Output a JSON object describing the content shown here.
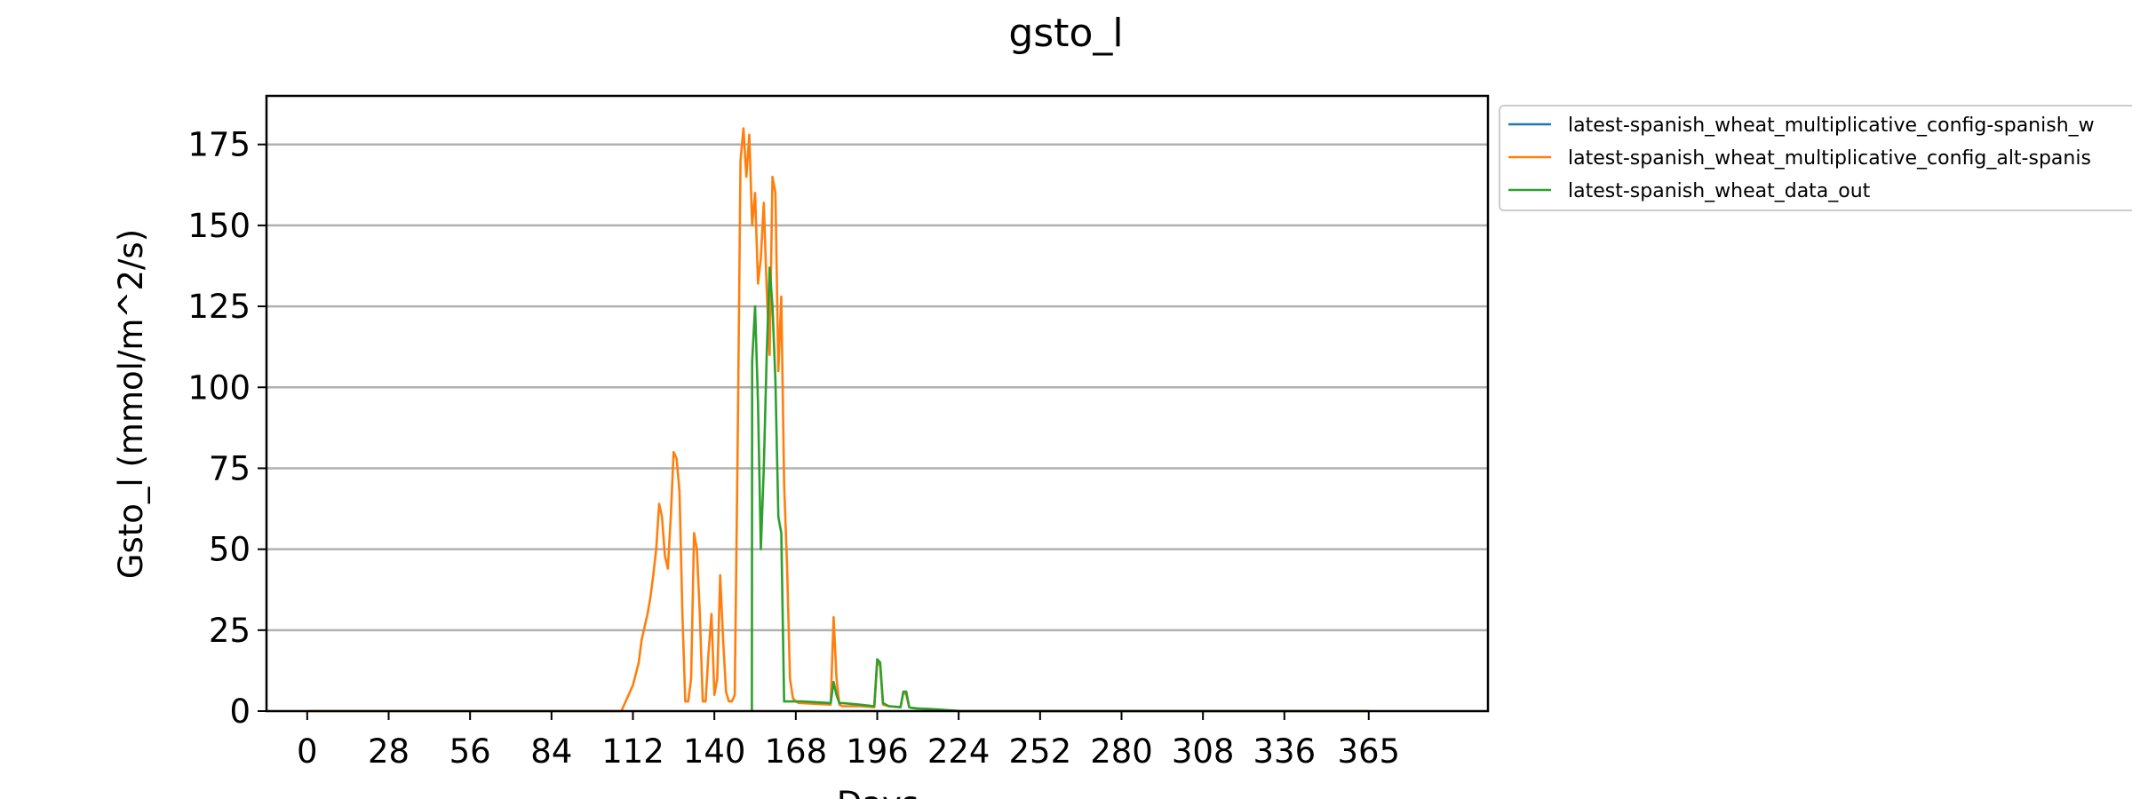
{
  "chart_data": {
    "type": "line",
    "title": "gsto_l",
    "xlabel": "Days",
    "ylabel": "Gsto_l (mmol/m^2/s)",
    "xlim": [
      -14,
      406
    ],
    "ylim": [
      0,
      190
    ],
    "xticks": [
      0,
      28,
      56,
      84,
      112,
      140,
      168,
      196,
      224,
      252,
      280,
      308,
      336,
      365
    ],
    "yticks": [
      0,
      25,
      50,
      75,
      100,
      125,
      150,
      175
    ],
    "grid": "horizontal",
    "legend_position": "outside-upper-right",
    "series": [
      {
        "name": "latest-spanish_wheat_multiplicative_config-spanish_w",
        "color": "#1f77b4",
        "x": [],
        "y": []
      },
      {
        "name": "latest-spanish_wheat_multiplicative_config_alt-spanis",
        "color": "#ff7f0e",
        "x": [
          0,
          108,
          110,
          112,
          114,
          115,
          116,
          117,
          118,
          119,
          120,
          121,
          122,
          123,
          124,
          125,
          126,
          127,
          128,
          129,
          130,
          131,
          132,
          133,
          134,
          135,
          136,
          137,
          138,
          139,
          140,
          141,
          142,
          143,
          144,
          145,
          146,
          147,
          148,
          149,
          150,
          151,
          152,
          153,
          154,
          155,
          156,
          157,
          158,
          159,
          160,
          161,
          162,
          163,
          164,
          165,
          166,
          167,
          168,
          169,
          170,
          180,
          181,
          182,
          183,
          184,
          190,
          195,
          196,
          197,
          198,
          200,
          204,
          205,
          206,
          207,
          208,
          210,
          215,
          220,
          225,
          365
        ],
        "y": [
          0,
          0,
          4,
          8,
          15,
          22,
          26,
          30,
          35,
          42,
          50,
          64,
          60,
          48,
          44,
          60,
          80,
          78,
          68,
          30,
          3,
          3,
          10,
          55,
          50,
          30,
          3,
          3,
          18,
          30,
          5,
          10,
          42,
          22,
          6,
          3,
          3,
          5,
          82,
          170,
          180,
          165,
          178,
          150,
          160,
          132,
          140,
          157,
          130,
          110,
          165,
          160,
          105,
          128,
          70,
          45,
          10,
          4,
          3,
          2.5,
          2.5,
          2,
          29,
          10,
          2,
          1.5,
          1.5,
          1.2,
          15,
          14,
          2,
          1.5,
          1.2,
          6,
          5,
          1.2,
          1,
          0.8,
          0.6,
          0.3,
          0,
          0
        ]
      },
      {
        "name": "latest-spanish_wheat_data_out",
        "color": "#2ca02c",
        "x": [
          152.9,
          153,
          154,
          155,
          156,
          157,
          158,
          159,
          160,
          161,
          162,
          163,
          164,
          165,
          166,
          167,
          168,
          170,
          180,
          181,
          182,
          183,
          184,
          190,
          195,
          196,
          197,
          198,
          200,
          204,
          205,
          206,
          207,
          208,
          210,
          215,
          220,
          225,
          365
        ],
        "y": [
          0,
          108,
          125,
          95,
          50,
          75,
          110,
          137,
          125,
          102,
          60,
          55,
          3,
          3,
          3,
          3,
          3,
          3,
          2.5,
          9,
          5,
          2.5,
          2.5,
          2,
          1.5,
          16,
          15,
          2.5,
          1.5,
          1.2,
          6,
          6,
          1.2,
          1,
          0.8,
          0.6,
          0.3,
          0,
          0
        ]
      }
    ]
  }
}
